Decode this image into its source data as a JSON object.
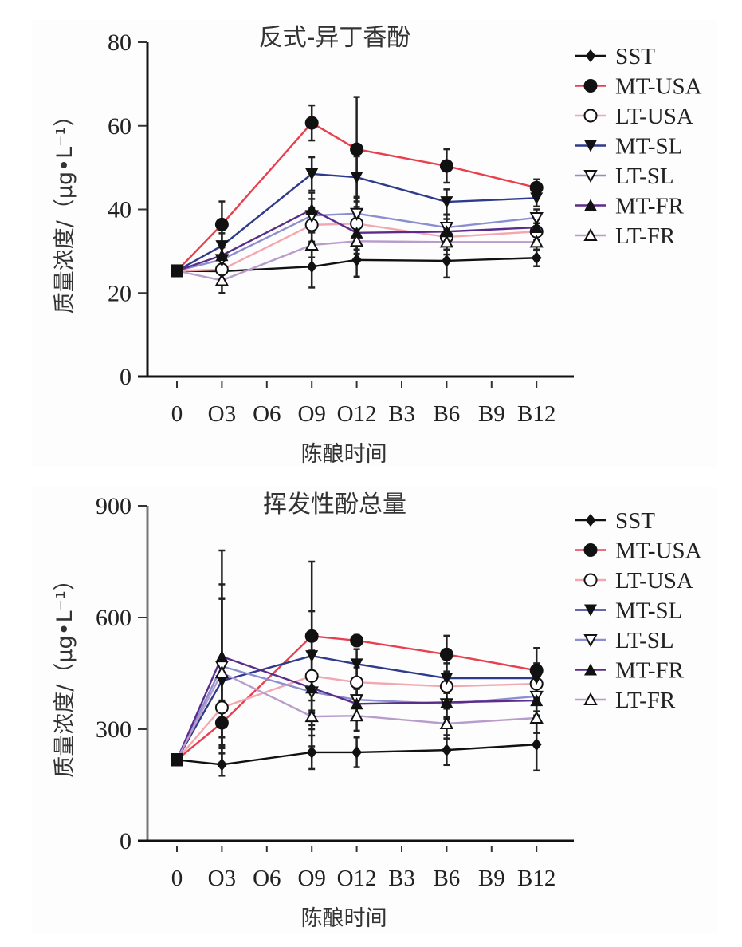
{
  "chart_data": [
    {
      "type": "line",
      "title": "反式-异丁香酚",
      "xlabel": "陈酿时间",
      "ylabel": "质量浓度/（μg•L⁻¹）",
      "categories": [
        "0",
        "O3",
        "O6",
        "O9",
        "O12",
        "B3",
        "B6",
        "B9",
        "B12"
      ],
      "ylim": [
        0,
        80
      ],
      "yticks": [
        0,
        20,
        40,
        60,
        80
      ],
      "legend_position": "top-right",
      "series": [
        {
          "name": "SST",
          "color": "#111111",
          "marker": "diamond",
          "values": [
            25.3,
            25.2,
            null,
            26.3,
            27.9,
            null,
            27.7,
            null,
            28.4
          ],
          "errors": [
            1,
            2.5,
            null,
            5,
            4,
            null,
            4,
            null,
            2
          ]
        },
        {
          "name": "MT-USA",
          "color": "#e8404e",
          "marker": "circle-filled",
          "values": [
            25.3,
            36.4,
            null,
            60.7,
            54.4,
            null,
            50.4,
            null,
            45.2
          ],
          "errors": [
            1,
            5.5,
            null,
            4.2,
            12.5,
            null,
            4,
            null,
            2
          ]
        },
        {
          "name": "LT-USA",
          "color": "#f2a8b0",
          "marker": "circle-open",
          "values": [
            25.3,
            25.6,
            null,
            36.3,
            36.6,
            null,
            33.4,
            null,
            34.7
          ],
          "errors": [
            1,
            3,
            null,
            4,
            4,
            null,
            3,
            null,
            2
          ]
        },
        {
          "name": "MT-SL",
          "color": "#2e3a8c",
          "marker": "triangle-down-filled",
          "values": [
            25.3,
            31.3,
            null,
            48.5,
            47.7,
            null,
            41.8,
            null,
            42.7
          ],
          "errors": [
            1,
            3,
            null,
            4,
            5,
            null,
            3,
            null,
            2
          ]
        },
        {
          "name": "LT-SL",
          "color": "#8a8fd0",
          "marker": "triangle-down-open",
          "values": [
            25.3,
            28.0,
            null,
            38.5,
            39.0,
            null,
            35.7,
            null,
            38.0
          ],
          "errors": [
            1,
            3,
            null,
            4,
            4,
            null,
            3,
            null,
            2
          ]
        },
        {
          "name": "MT-FR",
          "color": "#5b2d8a",
          "marker": "triangle-up-filled",
          "values": [
            25.3,
            29.0,
            null,
            40.0,
            34.4,
            null,
            34.7,
            null,
            35.7
          ],
          "errors": [
            1,
            3,
            null,
            4,
            4,
            null,
            3,
            null,
            2
          ]
        },
        {
          "name": "LT-FR",
          "color": "#b89ccc",
          "marker": "triangle-up-open",
          "values": [
            25.3,
            23.0,
            null,
            31.5,
            32.4,
            null,
            32.2,
            null,
            32.2
          ],
          "errors": [
            1,
            3,
            null,
            3,
            3,
            null,
            3,
            null,
            2
          ]
        }
      ]
    },
    {
      "type": "line",
      "title": "挥发性酚总量",
      "xlabel": "陈酿时间",
      "ylabel": "质量浓度/（μg•L⁻¹）",
      "categories": [
        "0",
        "O3",
        "O6",
        "O9",
        "O12",
        "B3",
        "B6",
        "B9",
        "B12"
      ],
      "ylim": [
        0,
        900
      ],
      "yticks": [
        0,
        300,
        600,
        900
      ],
      "legend_position": "top-right",
      "series": [
        {
          "name": "SST",
          "color": "#111111",
          "marker": "diamond",
          "values": [
            218,
            205,
            null,
            238,
            238,
            null,
            244,
            null,
            259
          ],
          "errors": [
            8,
            30,
            null,
            45,
            40,
            null,
            40,
            null,
            70
          ]
        },
        {
          "name": "MT-USA",
          "color": "#e8404e",
          "marker": "circle-filled",
          "values": [
            218,
            317,
            null,
            550,
            538,
            null,
            501,
            null,
            458
          ],
          "errors": [
            8,
            60,
            null,
            200,
            15,
            null,
            50,
            null,
            60
          ]
        },
        {
          "name": "LT-USA",
          "color": "#f2a8b0",
          "marker": "circle-open",
          "values": [
            218,
            358,
            null,
            443,
            426,
            null,
            415,
            null,
            422
          ],
          "errors": [
            8,
            80,
            null,
            100,
            40,
            null,
            40,
            null,
            40
          ]
        },
        {
          "name": "MT-SL",
          "color": "#2e3a8c",
          "marker": "triangle-down-filled",
          "values": [
            218,
            430,
            null,
            497,
            475,
            null,
            437,
            null,
            437
          ],
          "errors": [
            8,
            220,
            null,
            120,
            40,
            null,
            40,
            null,
            40
          ]
        },
        {
          "name": "LT-SL",
          "color": "#8a8fd0",
          "marker": "triangle-down-open",
          "values": [
            218,
            469,
            null,
            400,
            379,
            null,
            368,
            null,
            388
          ],
          "errors": [
            8,
            220,
            null,
            100,
            40,
            null,
            40,
            null,
            40
          ]
        },
        {
          "name": "MT-FR",
          "color": "#5b2d8a",
          "marker": "triangle-up-filled",
          "values": [
            218,
            495,
            null,
            411,
            368,
            null,
            372,
            null,
            377
          ],
          "errors": [
            8,
            285,
            null,
            100,
            40,
            null,
            40,
            null,
            40
          ]
        },
        {
          "name": "LT-FR",
          "color": "#b89ccc",
          "marker": "triangle-up-open",
          "values": [
            218,
            452,
            null,
            334,
            336,
            null,
            315,
            null,
            330
          ],
          "errors": [
            8,
            200,
            null,
            80,
            40,
            null,
            40,
            null,
            40
          ]
        }
      ]
    }
  ]
}
